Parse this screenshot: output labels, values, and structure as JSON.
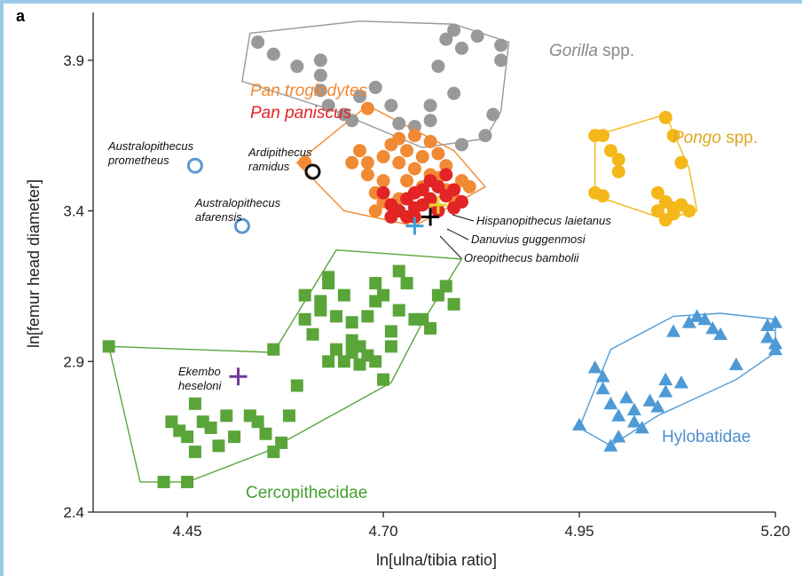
{
  "panel_letter": "a",
  "chart_data": {
    "type": "scatter",
    "xlabel": "ln[ulna/tibia ratio]",
    "ylabel": "ln[femur head diameter]",
    "xlim": [
      4.33,
      5.2
    ],
    "ylim": [
      2.4,
      4.05
    ],
    "x_ticks": [
      {
        "value": 4.45,
        "label": "4.45"
      },
      {
        "value": 4.7,
        "label": "4.70"
      },
      {
        "value": 4.95,
        "label": "4.95"
      },
      {
        "value": 5.2,
        "label": "5.20"
      }
    ],
    "y_ticks": [
      {
        "value": 2.4,
        "label": "2.4"
      },
      {
        "value": 2.9,
        "label": "2.9"
      },
      {
        "value": 3.4,
        "label": "3.4"
      },
      {
        "value": 3.9,
        "label": "3.9"
      }
    ],
    "groups": [
      {
        "key": "gorilla",
        "label_italic": "Gorilla",
        "label_rest": " spp.",
        "marker": "circle",
        "color": "#999999",
        "hull": [
          [
            4.53,
            3.99
          ],
          [
            4.67,
            4.03
          ],
          [
            4.79,
            4.02
          ],
          [
            4.86,
            3.96
          ],
          [
            4.85,
            3.73
          ],
          [
            4.83,
            3.64
          ],
          [
            4.75,
            3.61
          ],
          [
            4.64,
            3.73
          ],
          [
            4.52,
            3.83
          ]
        ],
        "points": [
          [
            4.54,
            3.96
          ],
          [
            4.56,
            3.92
          ],
          [
            4.59,
            3.88
          ],
          [
            4.62,
            3.9
          ],
          [
            4.62,
            3.85
          ],
          [
            4.62,
            3.8
          ],
          [
            4.63,
            3.75
          ],
          [
            4.65,
            3.72
          ],
          [
            4.66,
            3.7
          ],
          [
            4.67,
            3.78
          ],
          [
            4.69,
            3.81
          ],
          [
            4.71,
            3.75
          ],
          [
            4.72,
            3.69
          ],
          [
            4.74,
            3.68
          ],
          [
            4.76,
            3.7
          ],
          [
            4.76,
            3.75
          ],
          [
            4.77,
            3.88
          ],
          [
            4.78,
            3.97
          ],
          [
            4.79,
            4.0
          ],
          [
            4.8,
            3.94
          ],
          [
            4.82,
            3.98
          ],
          [
            4.85,
            3.9
          ],
          [
            4.85,
            3.95
          ],
          [
            4.84,
            3.72
          ],
          [
            4.83,
            3.65
          ],
          [
            4.79,
            3.79
          ],
          [
            4.8,
            3.62
          ]
        ]
      },
      {
        "key": "pan_t",
        "label_italic": "Pan troglodytes",
        "label_rest": "",
        "marker": "circle",
        "color": "#f08a35",
        "hull": [
          [
            4.59,
            3.56
          ],
          [
            4.68,
            3.75
          ],
          [
            4.79,
            3.6
          ],
          [
            4.83,
            3.48
          ],
          [
            4.74,
            3.35
          ],
          [
            4.65,
            3.4
          ]
        ],
        "points": [
          [
            4.6,
            3.56
          ],
          [
            4.68,
            3.74
          ],
          [
            4.77,
            3.59
          ],
          [
            4.81,
            3.48
          ],
          [
            4.66,
            3.56
          ],
          [
            4.67,
            3.6
          ],
          [
            4.68,
            3.52
          ],
          [
            4.69,
            3.46
          ],
          [
            4.7,
            3.58
          ],
          [
            4.7,
            3.5
          ],
          [
            4.71,
            3.62
          ],
          [
            4.72,
            3.56
          ],
          [
            4.72,
            3.44
          ],
          [
            4.73,
            3.6
          ],
          [
            4.73,
            3.5
          ],
          [
            4.74,
            3.54
          ],
          [
            4.74,
            3.46
          ],
          [
            4.75,
            3.58
          ],
          [
            4.75,
            3.48
          ],
          [
            4.76,
            3.52
          ],
          [
            4.76,
            3.43
          ],
          [
            4.77,
            3.51
          ],
          [
            4.78,
            3.55
          ],
          [
            4.78,
            3.47
          ],
          [
            4.79,
            3.44
          ],
          [
            4.8,
            3.5
          ],
          [
            4.69,
            3.4
          ],
          [
            4.7,
            3.43
          ],
          [
            4.68,
            3.56
          ],
          [
            4.72,
            3.64
          ],
          [
            4.74,
            3.65
          ],
          [
            4.76,
            3.63
          ]
        ]
      },
      {
        "key": "pan_p",
        "label_italic": "Pan paniscus",
        "label_rest": "",
        "marker": "circle",
        "color": "#e32424",
        "hull": [],
        "points": [
          [
            4.7,
            3.46
          ],
          [
            4.71,
            3.42
          ],
          [
            4.71,
            3.38
          ],
          [
            4.72,
            3.4
          ],
          [
            4.73,
            3.44
          ],
          [
            4.73,
            3.38
          ],
          [
            4.74,
            3.41
          ],
          [
            4.74,
            3.46
          ],
          [
            4.75,
            3.42
          ],
          [
            4.75,
            3.47
          ],
          [
            4.76,
            3.44
          ],
          [
            4.77,
            3.48
          ],
          [
            4.77,
            3.4
          ],
          [
            4.78,
            3.45
          ],
          [
            4.78,
            3.52
          ],
          [
            4.79,
            3.47
          ],
          [
            4.79,
            3.41
          ],
          [
            4.8,
            3.43
          ],
          [
            4.74,
            3.38
          ],
          [
            4.76,
            3.5
          ]
        ]
      },
      {
        "key": "pongo",
        "label_italic": "Pongo",
        "label_rest": " spp.",
        "marker": "circle",
        "color": "#f5b81a",
        "hull": [
          [
            4.97,
            3.65
          ],
          [
            5.06,
            3.72
          ],
          [
            5.09,
            3.54
          ],
          [
            5.1,
            3.4
          ],
          [
            5.07,
            3.38
          ],
          [
            5.05,
            3.38
          ],
          [
            4.97,
            3.45
          ]
        ],
        "points": [
          [
            4.97,
            3.65
          ],
          [
            4.98,
            3.65
          ],
          [
            5.06,
            3.71
          ],
          [
            5.07,
            3.65
          ],
          [
            4.99,
            3.6
          ],
          [
            5.0,
            3.57
          ],
          [
            5.0,
            3.53
          ],
          [
            5.08,
            3.56
          ],
          [
            4.97,
            3.46
          ],
          [
            4.98,
            3.45
          ],
          [
            5.05,
            3.46
          ],
          [
            5.06,
            3.43
          ],
          [
            5.07,
            3.41
          ],
          [
            5.08,
            3.42
          ],
          [
            5.09,
            3.4
          ],
          [
            5.05,
            3.4
          ],
          [
            5.07,
            3.39
          ],
          [
            5.06,
            3.37
          ]
        ]
      },
      {
        "key": "cerco",
        "label_italic": "",
        "label_rest": "Cercopithecidae",
        "marker": "square",
        "color": "#5aa53a",
        "hull": [
          [
            4.35,
            2.95
          ],
          [
            4.56,
            2.93
          ],
          [
            4.64,
            3.27
          ],
          [
            4.8,
            3.24
          ],
          [
            4.75,
            3.03
          ],
          [
            4.71,
            2.83
          ],
          [
            4.55,
            2.6
          ],
          [
            4.45,
            2.5
          ],
          [
            4.39,
            2.5
          ]
        ],
        "points": [
          [
            4.35,
            2.95
          ],
          [
            4.42,
            2.5
          ],
          [
            4.45,
            2.5
          ],
          [
            4.45,
            2.65
          ],
          [
            4.46,
            2.6
          ],
          [
            4.47,
            2.7
          ],
          [
            4.48,
            2.68
          ],
          [
            4.49,
            2.62
          ],
          [
            4.5,
            2.72
          ],
          [
            4.51,
            2.65
          ],
          [
            4.53,
            2.72
          ],
          [
            4.54,
            2.7
          ],
          [
            4.55,
            2.66
          ],
          [
            4.46,
            2.76
          ],
          [
            4.43,
            2.7
          ],
          [
            4.44,
            2.67
          ],
          [
            4.56,
            2.94
          ],
          [
            4.56,
            2.6
          ],
          [
            4.57,
            2.63
          ],
          [
            4.58,
            2.72
          ],
          [
            4.59,
            2.82
          ],
          [
            4.6,
            3.04
          ],
          [
            4.61,
            2.99
          ],
          [
            4.62,
            3.1
          ],
          [
            4.62,
            3.07
          ],
          [
            4.63,
            3.18
          ],
          [
            4.63,
            2.9
          ],
          [
            4.64,
            3.05
          ],
          [
            4.64,
            2.94
          ],
          [
            4.65,
            2.9
          ],
          [
            4.65,
            3.12
          ],
          [
            4.66,
            3.03
          ],
          [
            4.66,
            2.93
          ],
          [
            4.67,
            2.89
          ],
          [
            4.67,
            2.95
          ],
          [
            4.68,
            2.92
          ],
          [
            4.68,
            3.05
          ],
          [
            4.69,
            3.1
          ],
          [
            4.69,
            2.9
          ],
          [
            4.7,
            3.12
          ],
          [
            4.71,
            3.0
          ],
          [
            4.71,
            2.95
          ],
          [
            4.72,
            3.2
          ],
          [
            4.72,
            3.07
          ],
          [
            4.73,
            3.16
          ],
          [
            4.74,
            3.04
          ],
          [
            4.75,
            3.04
          ],
          [
            4.76,
            3.01
          ],
          [
            4.77,
            3.12
          ],
          [
            4.78,
            3.15
          ],
          [
            4.79,
            3.09
          ],
          [
            4.63,
            3.16
          ],
          [
            4.7,
            2.84
          ],
          [
            4.66,
            2.97
          ],
          [
            4.69,
            3.16
          ],
          [
            4.6,
            3.12
          ]
        ]
      },
      {
        "key": "hylo",
        "label_italic": "",
        "label_rest": "Hylobatidae",
        "marker": "triangle",
        "color": "#4d9ad6",
        "hull": [
          [
            4.95,
            2.68
          ],
          [
            4.99,
            2.94
          ],
          [
            5.07,
            3.05
          ],
          [
            5.13,
            3.06
          ],
          [
            5.2,
            3.04
          ],
          [
            5.2,
            2.93
          ],
          [
            5.15,
            2.84
          ],
          [
            5.05,
            2.72
          ],
          [
            4.99,
            2.62
          ]
        ],
        "points": [
          [
            4.95,
            2.69
          ],
          [
            4.97,
            2.88
          ],
          [
            4.98,
            2.85
          ],
          [
            4.98,
            2.81
          ],
          [
            4.99,
            2.76
          ],
          [
            5.0,
            2.72
          ],
          [
            5.0,
            2.65
          ],
          [
            5.01,
            2.78
          ],
          [
            5.02,
            2.74
          ],
          [
            5.02,
            2.7
          ],
          [
            5.03,
            2.68
          ],
          [
            5.04,
            2.77
          ],
          [
            5.05,
            2.75
          ],
          [
            5.06,
            2.8
          ],
          [
            5.06,
            2.84
          ],
          [
            5.07,
            3.0
          ],
          [
            5.08,
            2.83
          ],
          [
            5.09,
            3.03
          ],
          [
            5.1,
            3.05
          ],
          [
            5.11,
            3.04
          ],
          [
            5.12,
            3.01
          ],
          [
            5.13,
            2.99
          ],
          [
            5.15,
            2.89
          ],
          [
            5.19,
            3.02
          ],
          [
            5.19,
            2.98
          ],
          [
            5.2,
            3.03
          ],
          [
            5.2,
            2.96
          ],
          [
            5.2,
            2.94
          ],
          [
            4.99,
            2.62
          ]
        ]
      }
    ],
    "fossils": [
      {
        "key": "ardi",
        "label": [
          "Ardipithecus",
          "ramidus"
        ],
        "marker": "open-circle",
        "color": "#111111",
        "x": 4.61,
        "y": 3.53
      },
      {
        "key": "aprom",
        "label": [
          "Australopithecus",
          "prometheus"
        ],
        "marker": "open-circle",
        "color": "#5a97d0",
        "x": 4.46,
        "y": 3.55
      },
      {
        "key": "aafar",
        "label": [
          "Australopithecus",
          "afarensis"
        ],
        "marker": "open-circle",
        "color": "#5a97d0",
        "x": 4.52,
        "y": 3.35
      },
      {
        "key": "ekembo",
        "label": [
          "Ekembo",
          "heseloni"
        ],
        "marker": "cross",
        "color": "#6e3a9b",
        "x": 4.515,
        "y": 2.85
      },
      {
        "key": "hispano",
        "label": [
          "Hispanopithecus laietanus"
        ],
        "marker": "cross",
        "color": "#e8d630",
        "x": 4.77,
        "y": 3.42
      },
      {
        "key": "danuvius",
        "label": [
          "Danuvius guggenmosi"
        ],
        "marker": "cross",
        "color": "#000000",
        "x": 4.76,
        "y": 3.38
      },
      {
        "key": "oreo",
        "label": [
          "Oreopithecus bambolii"
        ],
        "marker": "cross",
        "color": "#3aa0d8",
        "x": 4.74,
        "y": 3.35
      }
    ]
  }
}
